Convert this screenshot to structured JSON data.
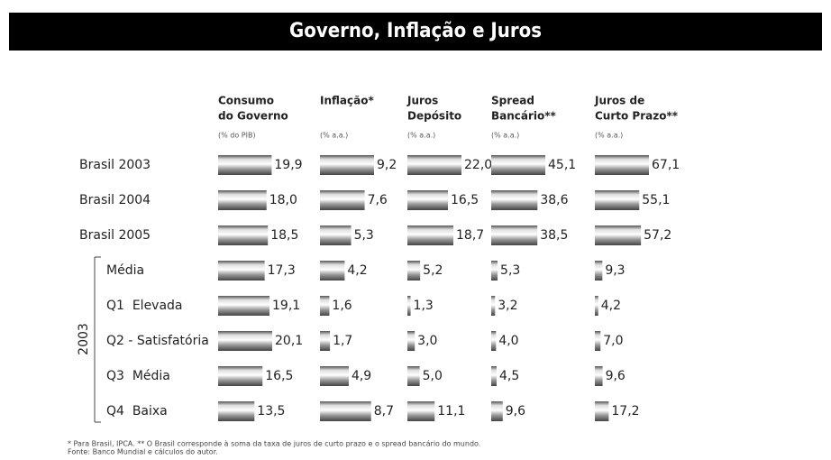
{
  "title": "Governo, Inflação e Juros",
  "categories": [
    "Brasil 2003",
    "Brasil 2004",
    "Brasil 2005",
    "Média",
    "Q1  Elevada",
    "Q2 - Satisfatória",
    "Q3  Média",
    "Q4  Baixa"
  ],
  "group_label": "2003",
  "footnote": [
    "* Para Brasil, IPCA. ** O Brasil corresponde à soma da taxa de juros de curto prazo e o spread bancário do mundo.",
    "Fonte: Banco Mundial e cálculos do autor."
  ],
  "chart_data": [
    {
      "type": "bar",
      "title": [
        "Consumo",
        "do Governo"
      ],
      "subtitle": "(% do PIB)",
      "values": [
        19.9,
        18.0,
        18.5,
        17.3,
        19.1,
        20.1,
        16.5,
        13.5
      ],
      "value_labels": [
        "19,9",
        "18,0",
        "18,5",
        "17,3",
        "19,1",
        "20,1",
        "16,5",
        "13,5"
      ]
    },
    {
      "type": "bar",
      "title": [
        "Inflação*"
      ],
      "subtitle": "(% a.a.)",
      "values": [
        9.2,
        7.6,
        5.3,
        4.2,
        1.6,
        1.7,
        4.9,
        8.7
      ],
      "value_labels": [
        "9,2",
        "7,6",
        "5,3",
        "4,2",
        "1,6",
        "1,7",
        "4,9",
        "8,7"
      ]
    },
    {
      "type": "bar",
      "title": [
        "Juros",
        "Depósito"
      ],
      "subtitle": "(% a.a.)",
      "values": [
        22.0,
        16.5,
        18.7,
        5.2,
        1.3,
        3.0,
        5.0,
        11.1
      ],
      "value_labels": [
        "22,0",
        "16,5",
        "18,7",
        "5,2",
        "1,3",
        "3,0",
        "5,0",
        "11,1"
      ]
    },
    {
      "type": "bar",
      "title": [
        "Spread",
        "Bancário**"
      ],
      "subtitle": "(% a.a.)",
      "values": [
        45.1,
        38.6,
        38.5,
        5.3,
        3.2,
        4.0,
        4.5,
        9.6
      ],
      "value_labels": [
        "45,1",
        "38,6",
        "38,5",
        "5,3",
        "3,2",
        "4,0",
        "4,5",
        "9,6"
      ]
    },
    {
      "type": "bar",
      "title": [
        "Juros de",
        "Curto Prazo**"
      ],
      "subtitle": "(% a.a.)",
      "values": [
        67.1,
        55.1,
        57.2,
        9.3,
        4.2,
        7.0,
        9.6,
        17.2
      ],
      "value_labels": [
        "67,1",
        "55,1",
        "57,2",
        "9,3",
        "4,2",
        "7,0",
        "9,6",
        "17,2"
      ]
    }
  ]
}
